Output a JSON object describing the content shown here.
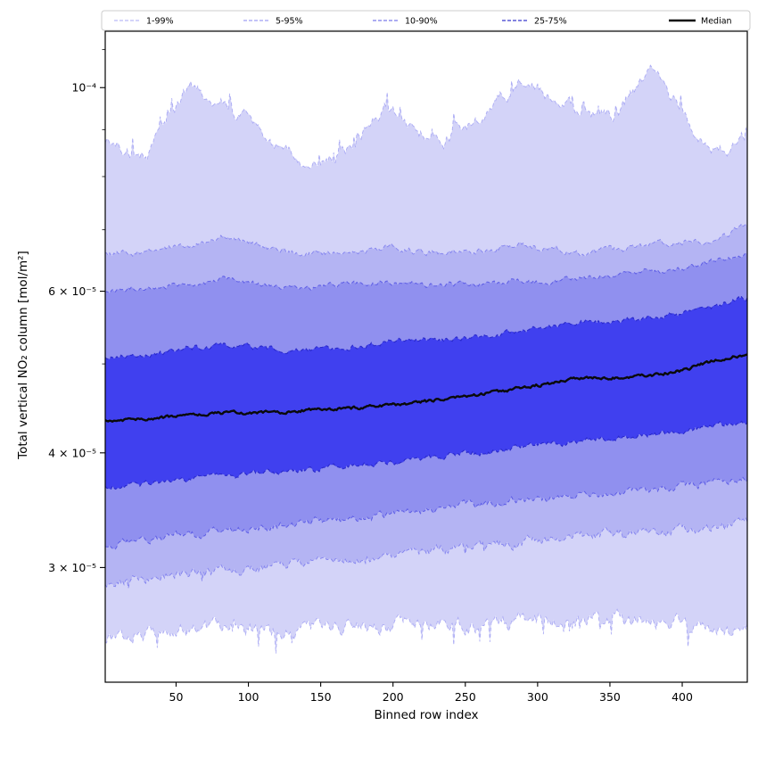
{
  "chart_data": {
    "type": "area",
    "title": "",
    "xlabel": "Binned row index",
    "ylabel": "Total vertical NO₂ column [mol/m²]",
    "x_range": [
      1,
      445
    ],
    "y_scale": "log",
    "y_range": [
      2.25e-05,
      0.0001152
    ],
    "x_ticks": [
      50,
      100,
      150,
      200,
      250,
      300,
      350,
      400
    ],
    "y_ticks_labeled": [
      {
        "value": 0.0001,
        "label": "10⁻⁴"
      },
      {
        "value": 6e-05,
        "label": "6 × 10⁻⁵"
      },
      {
        "value": 4e-05,
        "label": "4 × 10⁻⁵"
      },
      {
        "value": 3e-05,
        "label": "3 × 10⁻⁵"
      }
    ],
    "y_ticks_minor": [
      5e-05,
      7e-05,
      8e-05,
      9e-05,
      0.00011
    ],
    "values_unit": "×10⁻⁵ mol/m²",
    "values_scale": 1e-05,
    "anchors_x": [
      1,
      30,
      60,
      85,
      110,
      140,
      170,
      195,
      215,
      235,
      260,
      285,
      305,
      330,
      355,
      380,
      400,
      420,
      445
    ],
    "percentiles": {
      "p99": [
        8.7,
        8.4,
        10.1,
        9.6,
        8.9,
        8.25,
        8.6,
        9.5,
        9.0,
        8.8,
        9.3,
        10.1,
        9.9,
        9.4,
        9.35,
        10.5,
        9.4,
        8.45,
        8.8
      ],
      "p95": [
        6.6,
        6.6,
        6.75,
        6.9,
        6.7,
        6.6,
        6.6,
        6.7,
        6.65,
        6.6,
        6.65,
        6.75,
        6.7,
        6.6,
        6.65,
        6.75,
        6.8,
        6.85,
        7.05
      ],
      "p90": [
        6.0,
        6.05,
        6.1,
        6.2,
        6.1,
        6.05,
        6.1,
        6.15,
        6.1,
        6.1,
        6.1,
        6.15,
        6.15,
        6.2,
        6.25,
        6.3,
        6.35,
        6.45,
        6.6
      ],
      "p75": [
        5.08,
        5.12,
        5.2,
        5.25,
        5.2,
        5.18,
        5.22,
        5.28,
        5.3,
        5.32,
        5.36,
        5.42,
        5.46,
        5.56,
        5.55,
        5.62,
        5.66,
        5.76,
        5.9
      ],
      "median": [
        4.33,
        4.36,
        4.39,
        4.42,
        4.42,
        4.45,
        4.47,
        4.5,
        4.53,
        4.58,
        4.63,
        4.7,
        4.75,
        4.83,
        4.83,
        4.86,
        4.92,
        5.03,
        5.13
      ],
      "p25": [
        3.67,
        3.7,
        3.74,
        3.78,
        3.8,
        3.84,
        3.87,
        3.9,
        3.93,
        3.97,
        4.0,
        4.05,
        4.08,
        4.12,
        4.15,
        4.18,
        4.22,
        4.28,
        4.33
      ],
      "p10": [
        3.18,
        3.22,
        3.26,
        3.3,
        3.32,
        3.36,
        3.39,
        3.42,
        3.45,
        3.48,
        3.51,
        3.55,
        3.57,
        3.6,
        3.62,
        3.65,
        3.68,
        3.71,
        3.74
      ],
      "p5": [
        2.88,
        2.92,
        2.95,
        2.98,
        3.0,
        3.03,
        3.06,
        3.09,
        3.12,
        3.14,
        3.16,
        3.19,
        3.21,
        3.24,
        3.26,
        3.28,
        3.3,
        3.32,
        3.35
      ],
      "p1": [
        2.5,
        2.54,
        2.56,
        2.58,
        2.56,
        2.58,
        2.6,
        2.58,
        2.6,
        2.62,
        2.6,
        2.62,
        2.63,
        2.62,
        2.64,
        2.63,
        2.6,
        2.56,
        2.6
      ]
    },
    "bands": [
      {
        "label": "1-99%",
        "lower": "p1",
        "upper": "p99",
        "fill": "#d3d3f8",
        "edge_color": "rgba(85,85,235,0.40)",
        "edge_width": 0.9
      },
      {
        "label": "5-95%",
        "lower": "p5",
        "upper": "p95",
        "fill": "#b4b4f3",
        "edge_color": "rgba(80,80,235,0.55)",
        "edge_width": 0.9
      },
      {
        "label": "10-90%",
        "lower": "p10",
        "upper": "p90",
        "fill": "#9090ef",
        "edge_color": "rgba(65,65,225,0.70)",
        "edge_width": 1.0
      },
      {
        "label": "25-75%",
        "lower": "p25",
        "upper": "p75",
        "fill": "#4040ef",
        "edge_color": "rgba(35,35,200,0.90)",
        "edge_width": 1.1
      }
    ],
    "median_line": {
      "label": "Median",
      "color": "#0a0a0a",
      "width": 2.4
    },
    "legend": {
      "items": [
        {
          "label": "1-99%",
          "line_color": "rgba(85,85,235,0.40)",
          "dash": "4,2",
          "width": 1.3
        },
        {
          "label": "5-95%",
          "line_color": "rgba(80,80,235,0.55)",
          "dash": "4,2",
          "width": 1.3
        },
        {
          "label": "10-90%",
          "line_color": "rgba(65,65,225,0.70)",
          "dash": "4,2",
          "width": 1.3
        },
        {
          "label": "25-75%",
          "line_color": "rgba(35,35,200,0.90)",
          "dash": "4,2",
          "width": 1.3
        },
        {
          "label": "Median",
          "line_color": "#0a0a0a",
          "dash": "",
          "width": 2.6
        }
      ],
      "border_color": "#cccccc",
      "background": "#ffffff"
    },
    "grid": false,
    "legend_position": "top-spanning",
    "axis_color": "#000000",
    "background": "#ffffff"
  }
}
